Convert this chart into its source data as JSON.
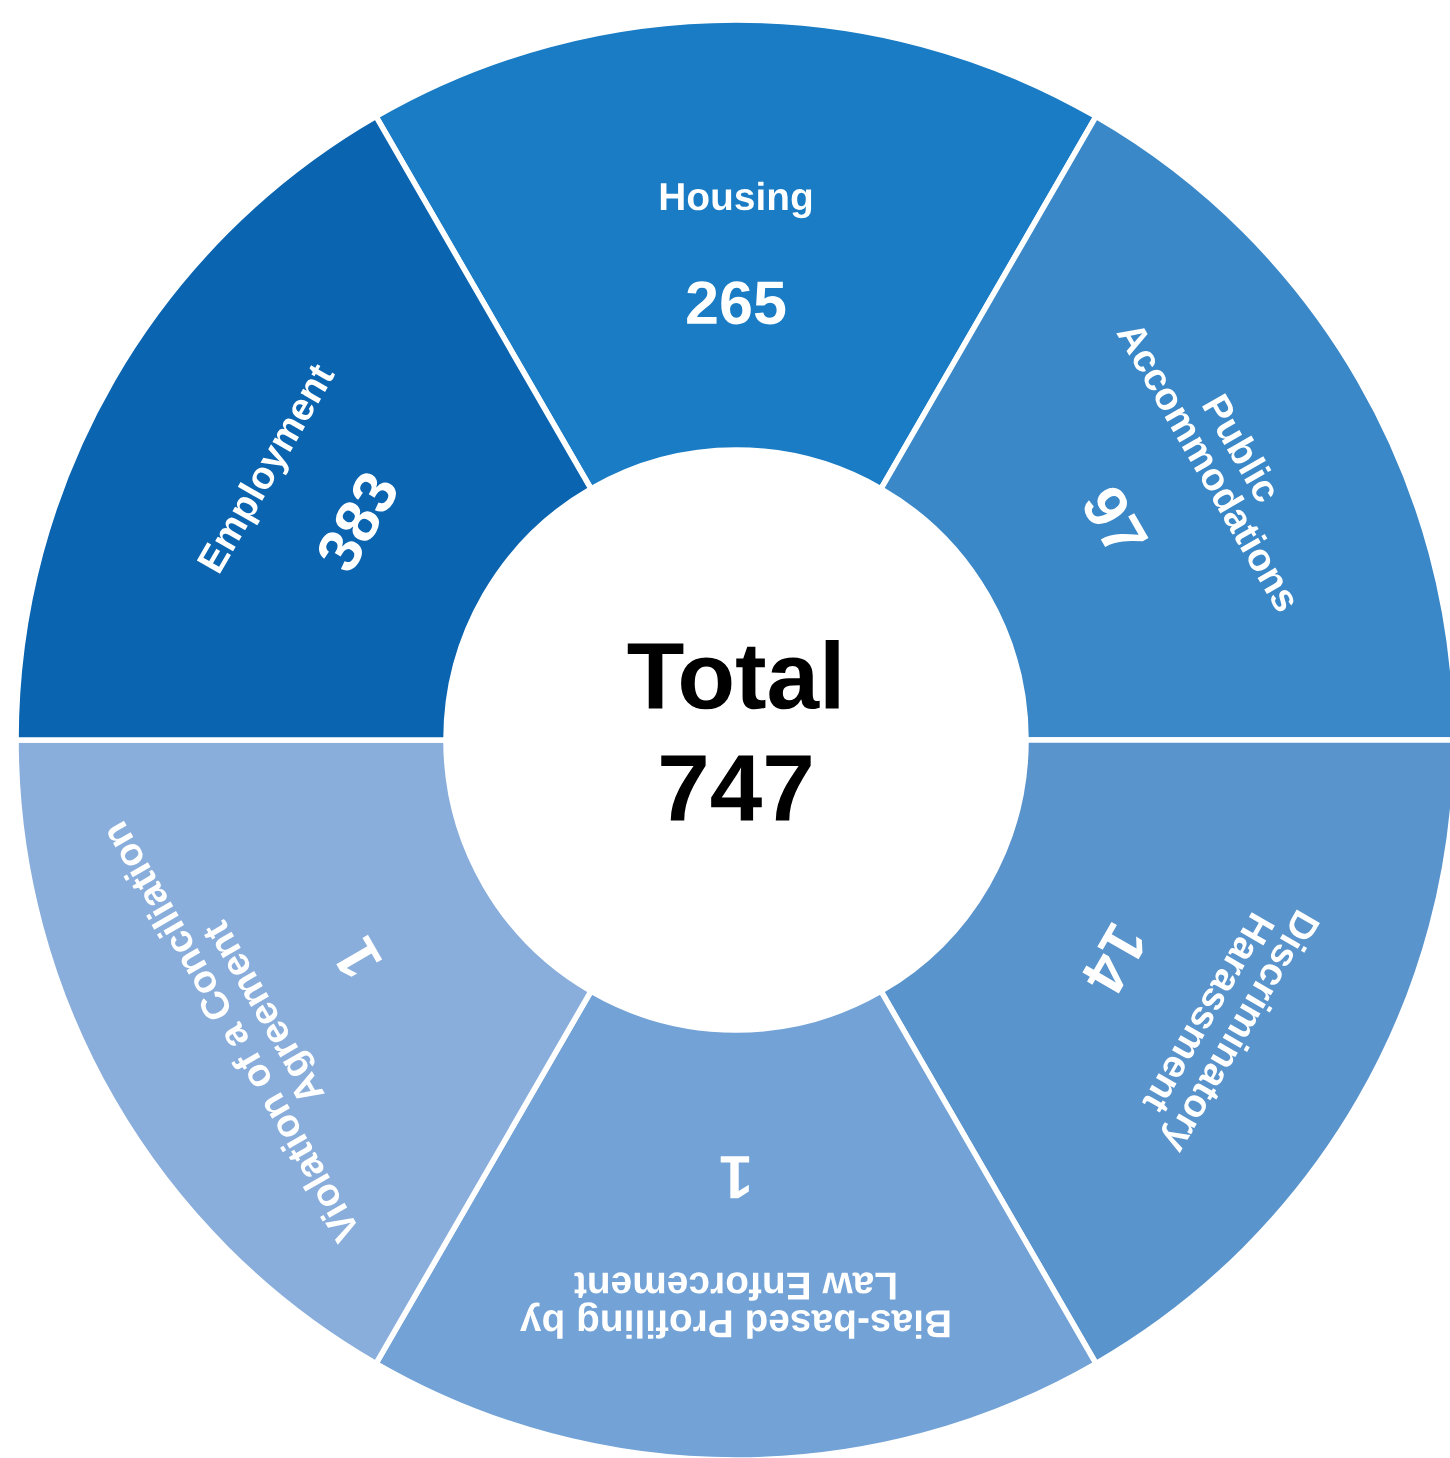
{
  "chart_data": {
    "type": "other",
    "categories": [
      "Housing",
      "Public\nAccommodations",
      "Discriminatory\nHarassment",
      "Bias-based Profiling by\nLaw Enforcement",
      "Violation of a Conciliation\nAgreement",
      "Employment"
    ],
    "values": [
      265,
      97,
      14,
      1,
      1,
      383
    ],
    "colors": [
      "#1a7cc4",
      "#3a88c8",
      "#5a94cc",
      "#72a2d6",
      "#8aaedb",
      "#0a64b0"
    ],
    "data_labels": true,
    "annotations": [
      "Total",
      "747"
    ]
  }
}
